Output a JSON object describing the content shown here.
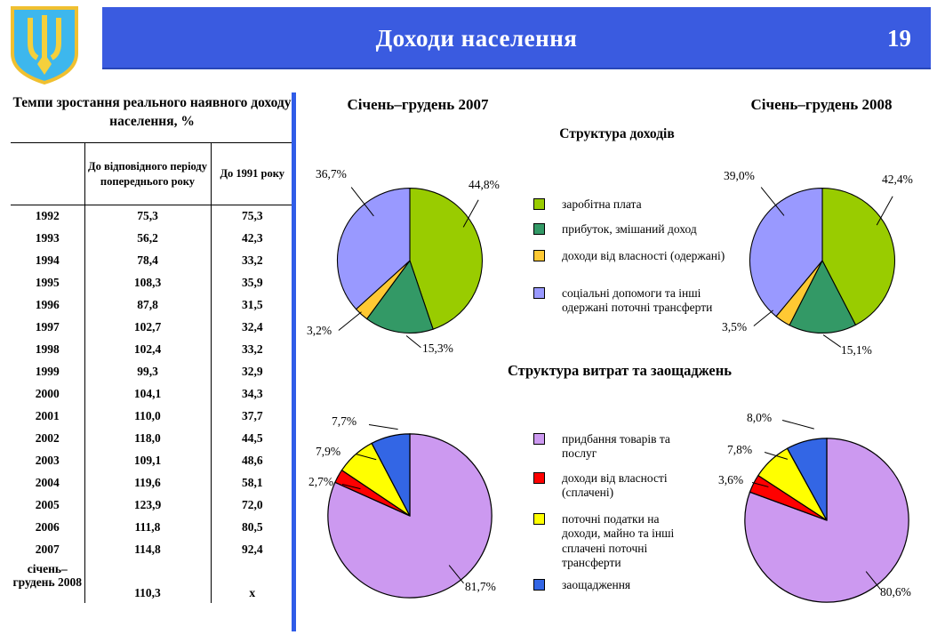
{
  "header": {
    "title": "Доходи населення",
    "page_number": "19"
  },
  "colors": {
    "header_bar": "#3A5BE0",
    "divider": "#2F5CE8",
    "emblem_shield": "#3DB7ED",
    "emblem_trident": "#F5D03C"
  },
  "icons": {
    "emblem": "ukraine-trident-coat-of-arms"
  },
  "table": {
    "title": "Темпи зростання реального наявного доходу населення, %",
    "columns": [
      "",
      "До відповідного періоду попереднього року",
      "До 1991 року"
    ],
    "rows": [
      [
        "1992",
        "75,3",
        "75,3"
      ],
      [
        "1993",
        "56,2",
        "42,3"
      ],
      [
        "1994",
        "78,4",
        "33,2"
      ],
      [
        "1995",
        "108,3",
        "35,9"
      ],
      [
        "1996",
        "87,8",
        "31,5"
      ],
      [
        "1997",
        "102,7",
        "32,4"
      ],
      [
        "1998",
        "102,4",
        "33,2"
      ],
      [
        "1999",
        "99,3",
        "32,9"
      ],
      [
        "2000",
        "104,1",
        "34,3"
      ],
      [
        "2001",
        "110,0",
        "37,7"
      ],
      [
        "2002",
        "118,0",
        "44,5"
      ],
      [
        "2003",
        "109,1",
        "48,6"
      ],
      [
        "2004",
        "119,6",
        "58,1"
      ],
      [
        "2005",
        "123,9",
        "72,0"
      ],
      [
        "2006",
        "111,8",
        "80,5"
      ],
      [
        "2007",
        "114,8",
        "92,4"
      ],
      [
        "січень–грудень 2008",
        "110,3",
        "x"
      ]
    ]
  },
  "sections": {
    "period_2007": "Січень–грудень 2007",
    "period_2008": "Січень–грудень 2008",
    "income_title": "Структура доходів",
    "expense_title": "Структура витрат та заощаджень"
  },
  "chart_data": [
    {
      "type": "pie",
      "title": "Структура доходів",
      "period": "Січень–грудень 2007",
      "labels": [
        "заробітна плата",
        "прибуток, змішаний доход",
        "доходи від власності (одержані)",
        "соціальні допомоги та інші одержані поточні трансферти"
      ],
      "values": [
        44.8,
        15.3,
        3.2,
        36.7
      ],
      "value_labels": [
        "44,8%",
        "15,3%",
        "3,2%",
        "36,7%"
      ],
      "colors": [
        "#99CC00",
        "#339966",
        "#FFC933",
        "#9999FF"
      ],
      "legend_position": "center-between-pies"
    },
    {
      "type": "pie",
      "title": "Структура доходів",
      "period": "Січень–грудень 2008",
      "labels": [
        "заробітна плата",
        "прибуток, змішаний доход",
        "доходи від власності (одержані)",
        "соціальні допомоги та інші одержані поточні трансферти"
      ],
      "values": [
        42.4,
        15.1,
        3.5,
        39.0
      ],
      "value_labels": [
        "42,4%",
        "15,1%",
        "3,5%",
        "39,0%"
      ],
      "colors": [
        "#99CC00",
        "#339966",
        "#FFC933",
        "#9999FF"
      ],
      "legend_position": "center-between-pies"
    },
    {
      "type": "pie",
      "title": "Структура витрат та заощаджень",
      "period": "Січень–грудень 2007",
      "labels": [
        "придбання товарів та послуг",
        "доходи від власності (сплачені)",
        "поточні податки на доходи, майно та інші сплачені поточні трансферти",
        "заощадження"
      ],
      "values": [
        81.7,
        2.7,
        7.9,
        7.7
      ],
      "value_labels": [
        "81,7%",
        "2,7%",
        "7,9%",
        "7,7%"
      ],
      "colors": [
        "#CC99F0",
        "#FF0000",
        "#FFFF00",
        "#3366E5"
      ],
      "legend_position": "center-between-pies"
    },
    {
      "type": "pie",
      "title": "Структура витрат та заощаджень",
      "period": "Січень–грудень 2008",
      "labels": [
        "придбання товарів та послуг",
        "доходи від власності (сплачені)",
        "поточні податки на доходи, майно та інші сплачені поточні трансферти",
        "заощадження"
      ],
      "values": [
        80.6,
        3.6,
        7.8,
        8.0
      ],
      "value_labels": [
        "80,6%",
        "3,6%",
        "7,8%",
        "8,0%"
      ],
      "colors": [
        "#CC99F0",
        "#FF0000",
        "#FFFF00",
        "#3366E5"
      ],
      "legend_position": "center-between-pies"
    }
  ]
}
